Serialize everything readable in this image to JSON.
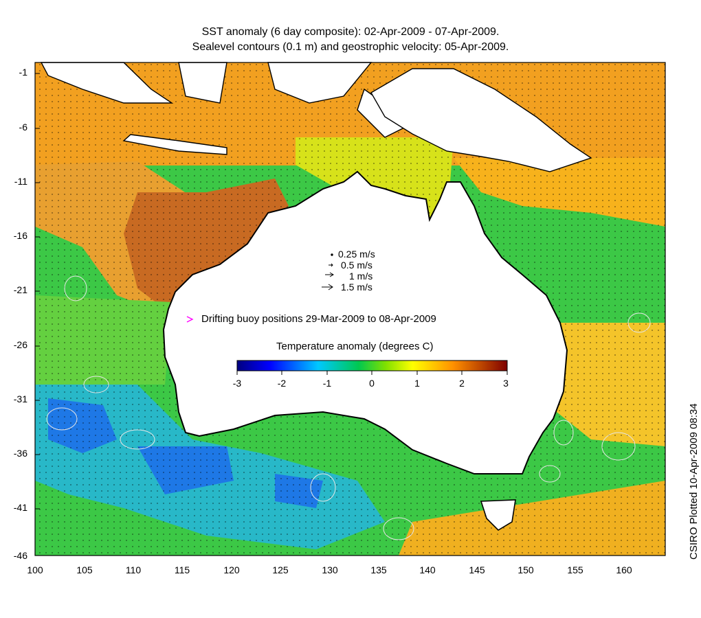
{
  "title_line1": "SST anomaly (6 day composite): 02-Apr-2009 - 07-Apr-2009.",
  "title_line2": "Sealevel contours (0.1 m) and geostrophic velocity: 05-Apr-2009.",
  "y_ticks": [
    "-1",
    "-6",
    "-11",
    "-16",
    "-21",
    "-26",
    "-31",
    "-36",
    "-41",
    "-46"
  ],
  "x_ticks": [
    "100",
    "105",
    "110",
    "115",
    "120",
    "125",
    "130",
    "135",
    "140",
    "145",
    "150",
    "155",
    "160"
  ],
  "velocity_legend": [
    "0.25 m/s",
    "0.5 m/s",
    "1 m/s",
    "1.5 m/s"
  ],
  "buoy_legend": "Drifting buoy positions 29-Mar-2009 to 08-Apr-2009",
  "colorbar": {
    "title": "Temperature anomaly (degrees C)",
    "ticks": [
      "-3",
      "-2",
      "-1",
      "0",
      "1",
      "2",
      "3"
    ],
    "colors": [
      "#00007f",
      "#0000ff",
      "#0080ff",
      "#00ffff",
      "#00c850",
      "#80ff00",
      "#ffff00",
      "#ff8000",
      "#ff0000",
      "#7f0000"
    ]
  },
  "credit": "CSIRO Plotted 10-Apr-2009 08:34"
}
